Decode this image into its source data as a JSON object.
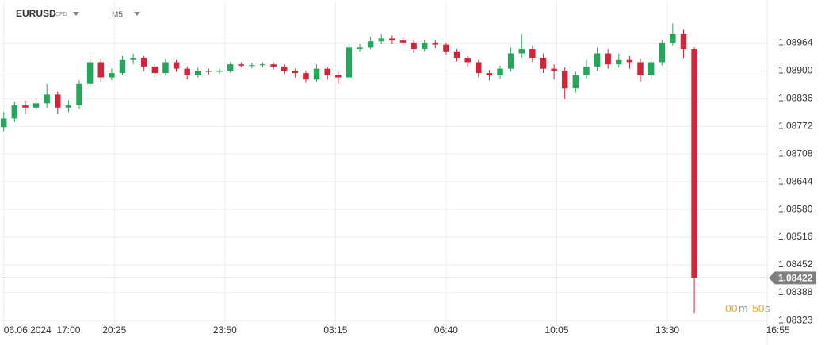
{
  "chart_data": {
    "type": "candlestick",
    "symbol": "EURUSD",
    "instrument_type": "CFD",
    "timeframe": "M5",
    "up_color": "#26a65b",
    "down_color": "#d0263b",
    "x": [
      0,
      20,
      40,
      60,
      80,
      100,
      120,
      140,
      160,
      180,
      200,
      220,
      240,
      260,
      280,
      300,
      320,
      340,
      360,
      380,
      400,
      420,
      440,
      460,
      480,
      500,
      520,
      540,
      560,
      580,
      600,
      620,
      640,
      660,
      680,
      700,
      720,
      740,
      760,
      780,
      800,
      820,
      840,
      860,
      880,
      900,
      920,
      940,
      960,
      980,
      1000,
      1020,
      1040,
      1060,
      1080,
      1100,
      1120,
      1140,
      1160,
      1180,
      1200,
      1220,
      1240,
      1260,
      1280
    ],
    "open": [
      1.0877,
      1.0879,
      1.0882,
      1.08815,
      1.08825,
      1.08845,
      1.08815,
      1.0882,
      1.0887,
      1.0892,
      1.08885,
      1.08895,
      1.08925,
      1.0893,
      1.0891,
      1.08895,
      1.0892,
      1.08905,
      1.0889,
      1.089,
      1.08898,
      1.089,
      1.08915,
      1.08912,
      1.08913,
      1.08915,
      1.0891,
      1.089,
      1.08895,
      1.0888,
      1.08905,
      1.0889,
      1.08885,
      1.0895,
      1.08955,
      1.08968,
      1.08975,
      1.0897,
      1.08965,
      1.0895,
      1.08965,
      1.0896,
      1.08945,
      1.0893,
      1.0892,
      1.08895,
      1.0889,
      1.08905,
      1.0894,
      1.0895,
      1.0893,
      1.08905,
      1.089,
      1.0886,
      1.0889,
      1.0891,
      1.0894,
      1.08915,
      1.08925,
      1.0892,
      1.0889,
      1.0892,
      1.08965,
      1.08985,
      1.0895
    ],
    "high": [
      1.08805,
      1.0883,
      1.08832,
      1.08838,
      1.0887,
      1.08852,
      1.08832,
      1.08878,
      1.08935,
      1.08928,
      1.08905,
      1.08935,
      1.0894,
      1.08935,
      1.08915,
      1.08928,
      1.08925,
      1.0891,
      1.08908,
      1.08905,
      1.08905,
      1.0892,
      1.0892,
      1.08918,
      1.0892,
      1.0892,
      1.08915,
      1.08905,
      1.089,
      1.08915,
      1.0891,
      1.08898,
      1.08962,
      1.08962,
      1.08978,
      1.08985,
      1.08982,
      1.08978,
      1.0897,
      1.08972,
      1.08972,
      1.08965,
      1.0895,
      1.08935,
      1.08925,
      1.08902,
      1.08912,
      1.08955,
      1.08985,
      1.08958,
      1.0894,
      1.08915,
      1.08908,
      1.08898,
      1.08925,
      1.08955,
      1.0895,
      1.0894,
      1.08935,
      1.08928,
      1.0893,
      1.08972,
      1.0901,
      1.08995,
      1.08955
    ],
    "low": [
      1.0876,
      1.08782,
      1.088,
      1.08805,
      1.08815,
      1.088,
      1.08805,
      1.08812,
      1.08862,
      1.08875,
      1.08878,
      1.0889,
      1.08915,
      1.089,
      1.08885,
      1.0889,
      1.08898,
      1.0888,
      1.08885,
      1.08892,
      1.08893,
      1.08896,
      1.08908,
      1.08906,
      1.08908,
      1.08903,
      1.08893,
      1.08885,
      1.08872,
      1.08875,
      1.0888,
      1.0887,
      1.0888,
      1.08945,
      1.0895,
      1.08962,
      1.08962,
      1.08958,
      1.08942,
      1.08945,
      1.08952,
      1.08938,
      1.08922,
      1.0891,
      1.08885,
      1.08878,
      1.08882,
      1.08898,
      1.0893,
      1.0892,
      1.08895,
      1.0888,
      1.08835,
      1.0885,
      1.08882,
      1.089,
      1.08905,
      1.08908,
      1.08905,
      1.08875,
      1.0888,
      1.08912,
      1.08958,
      1.0893,
      1.0834
    ],
    "close": [
      1.0879,
      1.0882,
      1.08815,
      1.08825,
      1.08845,
      1.08815,
      1.0882,
      1.0887,
      1.0892,
      1.08885,
      1.08895,
      1.08925,
      1.0893,
      1.0891,
      1.08895,
      1.0892,
      1.08905,
      1.0889,
      1.089,
      1.08898,
      1.089,
      1.08915,
      1.08912,
      1.08913,
      1.08915,
      1.0891,
      1.089,
      1.08895,
      1.0888,
      1.08905,
      1.0889,
      1.08885,
      1.08955,
      1.08955,
      1.08968,
      1.08975,
      1.0897,
      1.08965,
      1.0895,
      1.08965,
      1.0896,
      1.08945,
      1.0893,
      1.0892,
      1.08895,
      1.0889,
      1.08905,
      1.0894,
      1.0895,
      1.0893,
      1.08905,
      1.089,
      1.0886,
      1.0889,
      1.0891,
      1.0894,
      1.08915,
      1.08925,
      1.0892,
      1.0889,
      1.0892,
      1.08965,
      1.08985,
      1.0895,
      1.08422
    ],
    "last_price": {
      "value": 1.08422,
      "label": "1.08422"
    },
    "countdown": {
      "minutes": "00",
      "minutes_unit": "m",
      "seconds": "50",
      "seconds_unit": "s"
    },
    "xlim": [
      -4,
      1415
    ],
    "xticks": [
      {
        "value": 0,
        "label": "06.06.2024  17:00"
      },
      {
        "value": 205,
        "label": "20:25"
      },
      {
        "value": 410,
        "label": "23:50"
      },
      {
        "value": 615,
        "label": "03:15"
      },
      {
        "value": 820,
        "label": "06:40"
      },
      {
        "value": 1025,
        "label": "10:05"
      },
      {
        "value": 1230,
        "label": "13:30"
      },
      {
        "value": 1435,
        "label": "16:55"
      }
    ],
    "ylim": [
      1.083,
      1.0906
    ],
    "yticks": [
      {
        "value": 1.08323,
        "label": "1.08323"
      },
      {
        "value": 1.08388,
        "label": "1.08388"
      },
      {
        "value": 1.08452,
        "label": "1.08452"
      },
      {
        "value": 1.08516,
        "label": "1.08516"
      },
      {
        "value": 1.0858,
        "label": "1.08580"
      },
      {
        "value": 1.08644,
        "label": "1.08644"
      },
      {
        "value": 1.08708,
        "label": "1.08708"
      },
      {
        "value": 1.08772,
        "label": "1.08772"
      },
      {
        "value": 1.08836,
        "label": "1.08836"
      },
      {
        "value": 1.089,
        "label": "1.08900"
      },
      {
        "value": 1.08964,
        "label": "1.08964"
      }
    ],
    "grid": true
  }
}
